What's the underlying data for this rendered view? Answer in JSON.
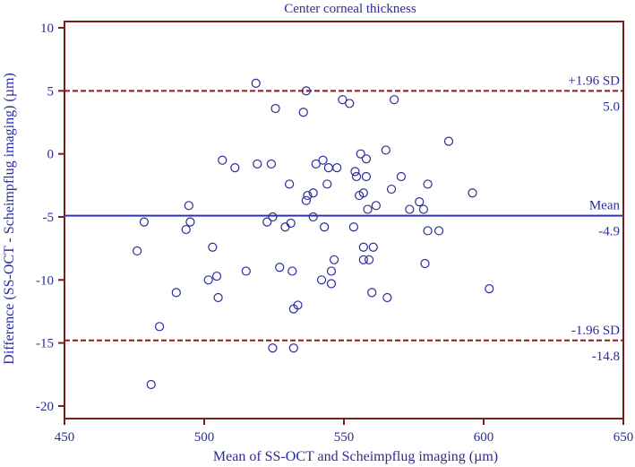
{
  "chart_data": {
    "type": "scatter",
    "title": "Center corneal thickness",
    "xlabel": "Mean of SS-OCT and Scheimpflug imaging (µm)",
    "ylabel": "Difference (SS-OCT - Scheimpflug imaging) (µm)",
    "xlim": [
      450,
      650
    ],
    "ylim": [
      -21,
      10.5
    ],
    "xticks": [
      450,
      500,
      550,
      600,
      650
    ],
    "yticks": [
      10,
      5,
      0,
      -5,
      -10,
      -15,
      -20
    ],
    "grid": false,
    "reference_lines": [
      {
        "name": "+1.96 SD",
        "value_label": "5.0",
        "y": 5.0,
        "style": "dashed",
        "color": "#8b1a1a"
      },
      {
        "name": "Mean",
        "value_label": "-4.9",
        "y": -4.9,
        "style": "solid",
        "color": "#3333aa"
      },
      {
        "name": "-1.96 SD",
        "value_label": "-14.8",
        "y": -14.8,
        "style": "dashed",
        "color": "#8b1a1a"
      }
    ],
    "points": [
      [
        476,
        -7.7
      ],
      [
        478.5,
        -5.4
      ],
      [
        481,
        -18.3
      ],
      [
        484,
        -13.7
      ],
      [
        490,
        -11.0
      ],
      [
        493.5,
        -6.0
      ],
      [
        494.5,
        -4.1
      ],
      [
        495,
        -5.4
      ],
      [
        501.5,
        -10.0
      ],
      [
        503,
        -7.4
      ],
      [
        504.5,
        -9.7
      ],
      [
        505,
        -11.4
      ],
      [
        506.5,
        -0.5
      ],
      [
        511,
        -1.1
      ],
      [
        515,
        -9.3
      ],
      [
        518.5,
        5.6
      ],
      [
        519,
        -0.8
      ],
      [
        522.5,
        -5.4
      ],
      [
        524,
        -0.8
      ],
      [
        524.5,
        -15.4
      ],
      [
        524.5,
        -5.0
      ],
      [
        525.5,
        3.6
      ],
      [
        527,
        -9.0
      ],
      [
        529,
        -5.8
      ],
      [
        530.5,
        -2.4
      ],
      [
        531,
        -5.5
      ],
      [
        531.5,
        -9.3
      ],
      [
        532,
        -12.3
      ],
      [
        532,
        -15.4
      ],
      [
        533.5,
        -12.0
      ],
      [
        535.5,
        3.3
      ],
      [
        536.5,
        5.0
      ],
      [
        536.5,
        -3.7
      ],
      [
        537,
        -3.3
      ],
      [
        539,
        -3.1
      ],
      [
        539,
        -5.0
      ],
      [
        540,
        -0.8
      ],
      [
        542,
        -10.0
      ],
      [
        542.5,
        -0.5
      ],
      [
        543,
        -5.8
      ],
      [
        544,
        -2.4
      ],
      [
        544.5,
        -1.1
      ],
      [
        545.5,
        -9.3
      ],
      [
        545.5,
        -10.3
      ],
      [
        546.5,
        -8.4
      ],
      [
        547.5,
        -1.1
      ],
      [
        549.5,
        4.3
      ],
      [
        552,
        4.0
      ],
      [
        553.5,
        -5.8
      ],
      [
        554,
        -1.4
      ],
      [
        554.5,
        -1.8
      ],
      [
        555.5,
        -3.3
      ],
      [
        556,
        0.0
      ],
      [
        557,
        -7.4
      ],
      [
        557,
        -8.4
      ],
      [
        557,
        -3.1
      ],
      [
        558,
        -1.8
      ],
      [
        558,
        -0.4
      ],
      [
        558.5,
        -4.4
      ],
      [
        559,
        -8.4
      ],
      [
        560,
        -11.0
      ],
      [
        560.5,
        -7.4
      ],
      [
        561.5,
        -4.1
      ],
      [
        565,
        0.3
      ],
      [
        565.5,
        -11.4
      ],
      [
        567,
        -2.8
      ],
      [
        568,
        4.3
      ],
      [
        570.5,
        -1.8
      ],
      [
        573.5,
        -4.4
      ],
      [
        577,
        -3.8
      ],
      [
        578.5,
        -4.4
      ],
      [
        579,
        -8.7
      ],
      [
        580,
        -6.1
      ],
      [
        580,
        -2.4
      ],
      [
        584,
        -6.1
      ],
      [
        587.5,
        1.0
      ],
      [
        596,
        -3.1
      ],
      [
        602,
        -10.7
      ]
    ]
  }
}
